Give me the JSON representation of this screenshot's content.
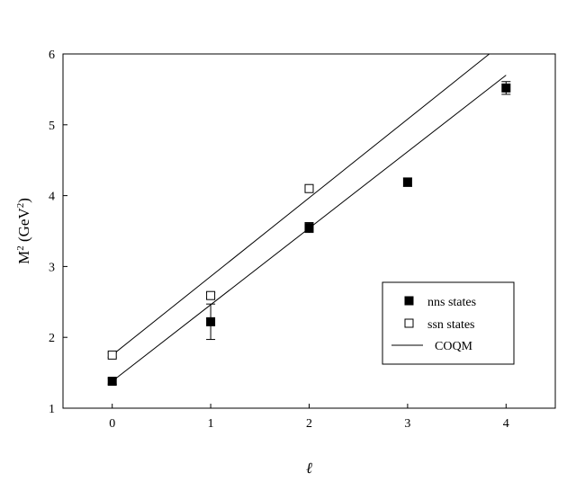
{
  "chart_data": {
    "type": "scatter",
    "title": "",
    "xlabel": "ℓ",
    "ylabel": {
      "base": "M",
      "sup1": "2",
      "mid": " (GeV",
      "sup2": "2",
      "end": ")"
    },
    "xlim": [
      -0.5,
      4.5
    ],
    "ylim": [
      1,
      6
    ],
    "xticks": [
      0,
      1,
      2,
      3,
      4
    ],
    "yticks": [
      1,
      2,
      3,
      4,
      5,
      6
    ],
    "grid": false,
    "legend_position": "lower-right",
    "series": [
      {
        "name": "nns states",
        "marker": "filled-square",
        "points": [
          {
            "x": 0,
            "y": 1.38,
            "err": 0.04
          },
          {
            "x": 1,
            "y": 2.22,
            "err": 0.25
          },
          {
            "x": 2,
            "y": 3.55,
            "err": 0.07
          },
          {
            "x": 3,
            "y": 4.19,
            "err": 0.06
          },
          {
            "x": 4,
            "y": 5.52,
            "err": 0.09
          }
        ]
      },
      {
        "name": "ssn states",
        "marker": "open-square",
        "points": [
          {
            "x": 0,
            "y": 1.75,
            "err": 0.03
          },
          {
            "x": 1,
            "y": 2.59,
            "err": 0.04
          },
          {
            "x": 2,
            "y": 4.1,
            "err": 0.05
          }
        ]
      },
      {
        "name": "COQM",
        "marker": "line",
        "lines": [
          {
            "x0": 0,
            "y0": 1.75,
            "x1": 3.83,
            "y1": 6.0
          },
          {
            "x0": 0,
            "y0": 1.38,
            "x1": 4.0,
            "y1": 5.7
          }
        ]
      }
    ]
  }
}
